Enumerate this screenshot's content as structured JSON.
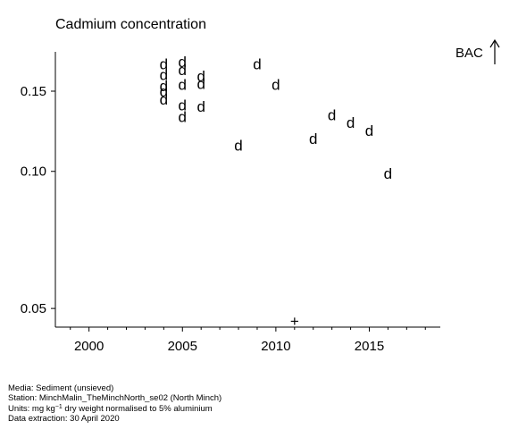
{
  "chart_data": {
    "type": "scatter",
    "title": "Cadmium concentration",
    "xlabel": "",
    "ylabel": "",
    "y_scale": "log",
    "xlim": [
      1998.2,
      2018.8
    ],
    "ylim": [
      0.0455,
      0.183
    ],
    "x_ticks": [
      2000,
      2005,
      2010,
      2015
    ],
    "y_ticks": [
      0.05,
      0.1,
      0.15
    ],
    "y_tick_labels": [
      "0.05",
      "0.10",
      "0.15"
    ],
    "grid": false,
    "marker_detected": "d",
    "marker_below_detection": "+",
    "points": [
      {
        "x": 2004,
        "y": 0.172,
        "marker": "d"
      },
      {
        "x": 2004,
        "y": 0.163,
        "marker": "d"
      },
      {
        "x": 2004,
        "y": 0.154,
        "marker": "d"
      },
      {
        "x": 2004,
        "y": 0.15,
        "marker": "d"
      },
      {
        "x": 2004,
        "y": 0.144,
        "marker": "d"
      },
      {
        "x": 2005,
        "y": 0.174,
        "marker": "d"
      },
      {
        "x": 2005,
        "y": 0.167,
        "marker": "d"
      },
      {
        "x": 2005,
        "y": 0.155,
        "marker": "d"
      },
      {
        "x": 2005,
        "y": 0.14,
        "marker": "d"
      },
      {
        "x": 2005,
        "y": 0.132,
        "marker": "d"
      },
      {
        "x": 2006,
        "y": 0.162,
        "marker": "d"
      },
      {
        "x": 2006,
        "y": 0.156,
        "marker": "d"
      },
      {
        "x": 2006,
        "y": 0.139,
        "marker": "d"
      },
      {
        "x": 2008,
        "y": 0.114,
        "marker": "d"
      },
      {
        "x": 2009,
        "y": 0.172,
        "marker": "d"
      },
      {
        "x": 2010,
        "y": 0.155,
        "marker": "d"
      },
      {
        "x": 2011,
        "y": 0.047,
        "marker": "+"
      },
      {
        "x": 2012,
        "y": 0.118,
        "marker": "d"
      },
      {
        "x": 2013,
        "y": 0.133,
        "marker": "d"
      },
      {
        "x": 2014,
        "y": 0.128,
        "marker": "d"
      },
      {
        "x": 2015,
        "y": 0.123,
        "marker": "d"
      },
      {
        "x": 2016,
        "y": 0.099,
        "marker": "d"
      }
    ]
  },
  "bac_label": "BAC",
  "bac_arrow_icon": "up-arrow-icon",
  "metadata": {
    "media": "Media: Sediment (unsieved)",
    "station": "Station: MinchMalin_TheMinchNorth_se02 (North Minch)",
    "units_prefix": "Units:  mg kg",
    "units_exponent": "−1",
    "units_suffix": " dry weight normalised to 5% aluminium",
    "extraction": "Data extraction: 30 April 2020"
  }
}
